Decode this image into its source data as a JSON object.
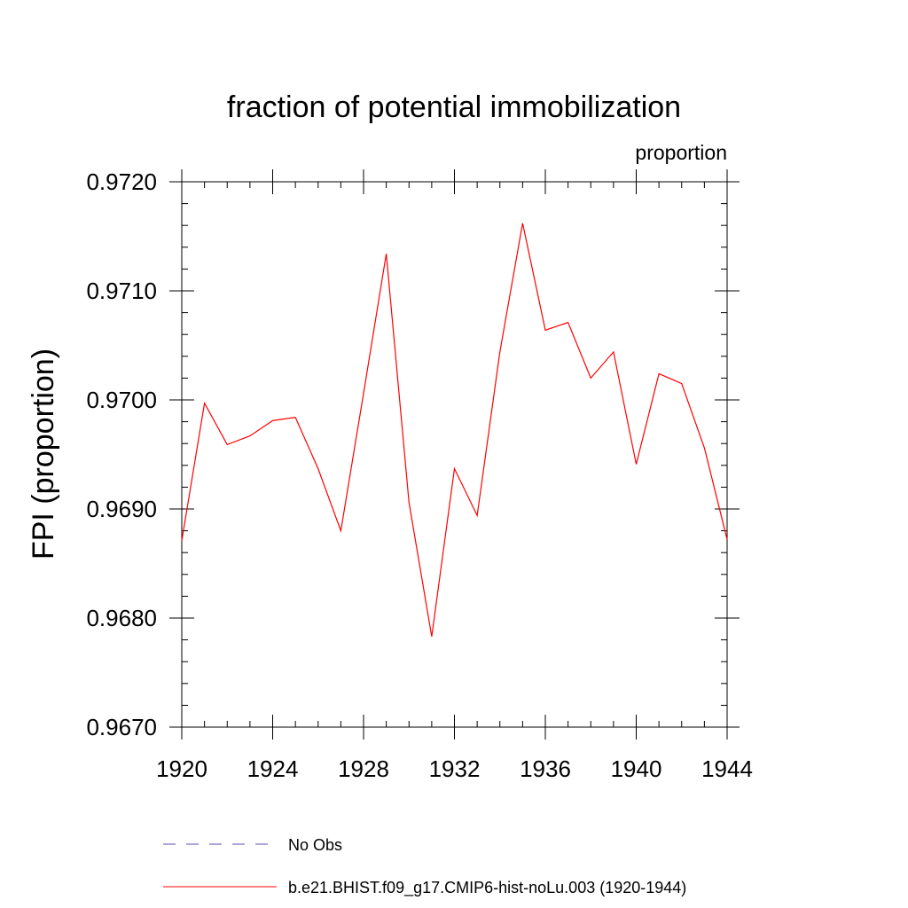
{
  "chart_data": {
    "type": "line",
    "title": "fraction of potential immobilization",
    "units_label": "proportion",
    "ylabel": "FPI  (proportion)",
    "xlabel": "",
    "xlim": [
      1920,
      1944
    ],
    "ylim": [
      0.967,
      0.972
    ],
    "x_ticks": [
      1920,
      1924,
      1928,
      1932,
      1936,
      1940,
      1944
    ],
    "x_tick_labels": [
      "1920",
      "1924",
      "1928",
      "1932",
      "1936",
      "1940",
      "1944"
    ],
    "y_ticks": [
      0.967,
      0.968,
      0.969,
      0.97,
      0.971,
      0.972
    ],
    "y_tick_labels": [
      "0.9670",
      "0.9680",
      "0.9690",
      "0.9700",
      "0.9710",
      "0.9720"
    ],
    "x_minor_step": 1,
    "y_minor_step": 0.0002,
    "grid": false,
    "legend_position": "bottom",
    "series": [
      {
        "name": "b.e21.BHIST.f09_g17.CMIP6-hist-noLu.003 (1920-1944)",
        "color": "#ff0000",
        "style": "solid",
        "x": [
          1920,
          1921,
          1922,
          1923,
          1924,
          1925,
          1926,
          1927,
          1928,
          1929,
          1930,
          1931,
          1932,
          1933,
          1934,
          1935,
          1936,
          1937,
          1938,
          1939,
          1940,
          1941,
          1942,
          1943,
          1944
        ],
        "y": [
          0.96871,
          0.96997,
          0.96959,
          0.96967,
          0.96981,
          0.96984,
          0.96937,
          0.9688,
          0.97006,
          0.97134,
          0.96906,
          0.96783,
          0.96937,
          0.96894,
          0.97044,
          0.97162,
          0.97064,
          0.97071,
          0.9702,
          0.97044,
          0.96941,
          0.97024,
          0.97015,
          0.96956,
          0.96872
        ]
      }
    ],
    "legend": [
      {
        "label": "No Obs",
        "color": "#5b4bb0",
        "style": "dashed"
      },
      {
        "label": "b.e21.BHIST.f09_g17.CMIP6-hist-noLu.003 (1920-1944)",
        "color": "#ff0000",
        "style": "solid"
      }
    ]
  }
}
